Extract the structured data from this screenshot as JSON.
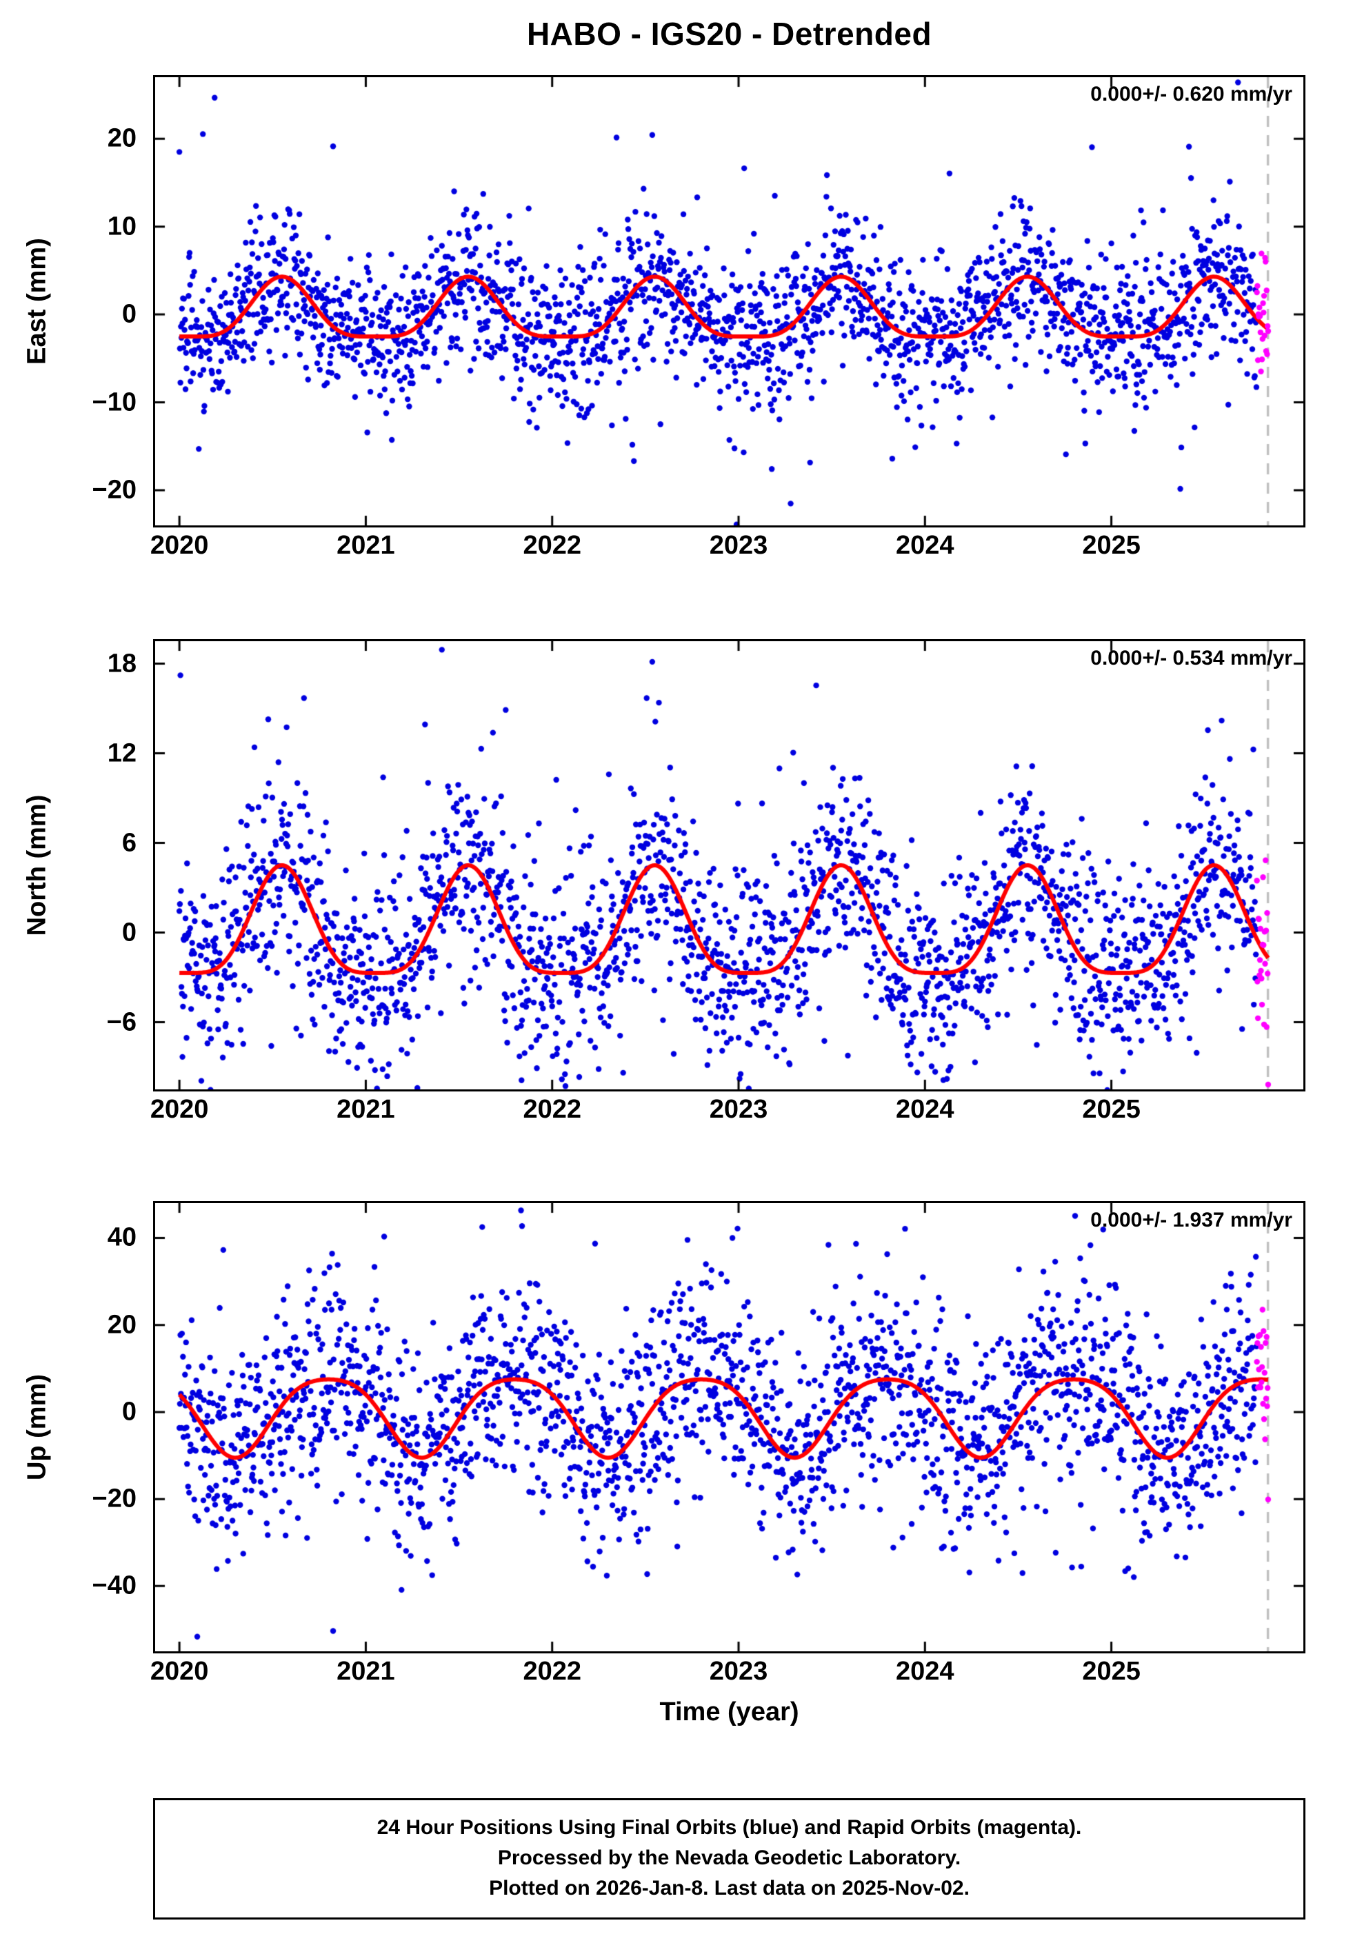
{
  "title": "HABO - IGS20 - Detrended",
  "xlabel": "Time (year)",
  "footer": {
    "lines": [
      "24 Hour Positions Using Final Orbits (blue) and Rapid Orbits (magenta).",
      "Processed by the Nevada Geodetic Laboratory.",
      "Plotted on 2026-Jan-8. Last data on 2025-Nov-02."
    ]
  },
  "colors": {
    "final_points": "#0000e0",
    "rapid_points": "#ff00ff",
    "model_curve": "#ff0000",
    "dashed_line": "#c0c0c0",
    "frame": "#000000"
  },
  "chart_data": [
    {
      "type": "scatter",
      "component": "East",
      "ylabel": "East (mm)",
      "annotation": "0.000+/- 0.620 mm/yr",
      "trend_mm_yr": 0.0,
      "trend_sigma_mm_yr": 0.62,
      "xlim": [
        2019.87,
        2026.03
      ],
      "ylim": [
        -24,
        27
      ],
      "xticks": [
        2020,
        2021,
        2022,
        2023,
        2024,
        2025
      ],
      "yticks": [
        -20,
        -10,
        0,
        10,
        20
      ],
      "x_start": 2020.0,
      "x_end": 2025.84,
      "points_per_year": 365,
      "seasonal": {
        "annual_amp": 3.4,
        "annual_phase": 0.55,
        "semi_amp": 0.9,
        "semi_phase": 0.55
      },
      "noise_sigma": 4.0,
      "outlier_frac": 0.08,
      "outlier_sigma": 9.0,
      "rapid_start": 2025.78,
      "dashed_x": 2025.84,
      "seed": 7
    },
    {
      "type": "scatter",
      "component": "North",
      "ylabel": "North (mm)",
      "annotation": "0.000+/- 0.534 mm/yr",
      "trend_mm_yr": 0.0,
      "trend_sigma_mm_yr": 0.534,
      "xlim": [
        2019.87,
        2026.03
      ],
      "ylim": [
        -10.5,
        19.5
      ],
      "xticks": [
        2020,
        2021,
        2022,
        2023,
        2024,
        2025
      ],
      "yticks": [
        -6,
        0,
        6,
        12,
        18
      ],
      "x_start": 2020.0,
      "x_end": 2025.84,
      "points_per_year": 365,
      "seasonal": {
        "annual_amp": 3.6,
        "annual_phase": 0.55,
        "semi_amp": 0.9,
        "semi_phase": 0.55
      },
      "noise_sigma": 3.2,
      "outlier_frac": 0.09,
      "outlier_sigma": 7.5,
      "rapid_start": 2025.78,
      "dashed_x": 2025.84,
      "seed": 13
    },
    {
      "type": "scatter",
      "component": "Up",
      "ylabel": "Up (mm)",
      "annotation": "0.000+/- 1.937 mm/yr",
      "trend_mm_yr": 0.0,
      "trend_sigma_mm_yr": 1.937,
      "xlim": [
        2019.87,
        2026.03
      ],
      "ylim": [
        -55,
        48
      ],
      "xticks": [
        2020,
        2021,
        2022,
        2023,
        2024,
        2025
      ],
      "yticks": [
        -40,
        -20,
        0,
        20,
        40
      ],
      "x_start": 2020.0,
      "x_end": 2025.84,
      "points_per_year": 365,
      "seasonal": {
        "annual_amp": 9.0,
        "annual_phase": 0.8,
        "semi_amp": -1.5,
        "semi_phase": 0.8
      },
      "noise_sigma": 12.0,
      "outlier_frac": 0.08,
      "outlier_sigma": 22.0,
      "rapid_start": 2025.78,
      "dashed_x": 2025.84,
      "seed": 99
    }
  ]
}
